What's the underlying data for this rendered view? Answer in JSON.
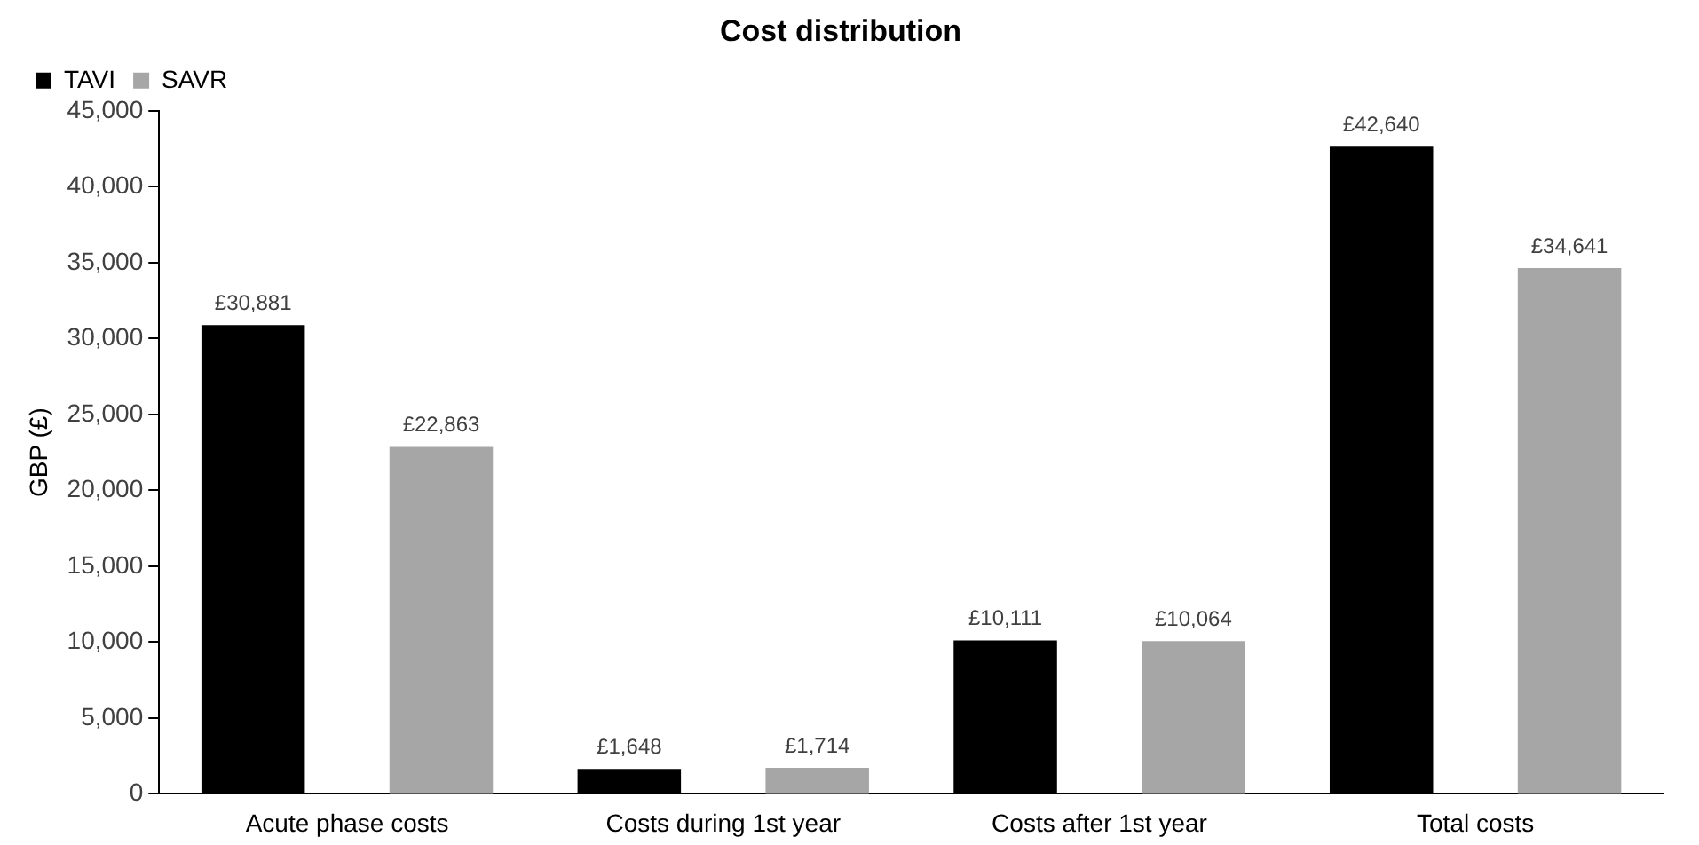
{
  "chart_data": {
    "type": "bar",
    "title": "Cost distribution",
    "ylabel": "GBP (£)",
    "categories": [
      "Acute phase costs",
      "Costs during 1st year",
      "Costs after 1st year",
      "Total costs"
    ],
    "series": [
      {
        "name": "TAVI",
        "color": "#000000",
        "values": [
          30881,
          1648,
          10111,
          42640
        ],
        "value_labels": [
          "£30,881",
          "£1,648",
          "£10,111",
          "£42,640"
        ]
      },
      {
        "name": "SAVR",
        "color": "#a6a6a6",
        "values": [
          22863,
          1714,
          10064,
          34641
        ],
        "value_labels": [
          "£22,863",
          "£1,714",
          "£10,064",
          "£34,641"
        ]
      }
    ],
    "ylim": [
      0,
      45000
    ],
    "yticks": [
      {
        "value": 0,
        "label": "0"
      },
      {
        "value": 5000,
        "label": "5,000"
      },
      {
        "value": 10000,
        "label": "10,000"
      },
      {
        "value": 15000,
        "label": "15,000"
      },
      {
        "value": 20000,
        "label": "20,000"
      },
      {
        "value": 25000,
        "label": "25,000"
      },
      {
        "value": 30000,
        "label": "30,000"
      },
      {
        "value": 35000,
        "label": "35,000"
      },
      {
        "value": 40000,
        "label": "40,000"
      },
      {
        "value": 45000,
        "label": "45,000"
      }
    ],
    "grid": false,
    "legend": "top left"
  }
}
